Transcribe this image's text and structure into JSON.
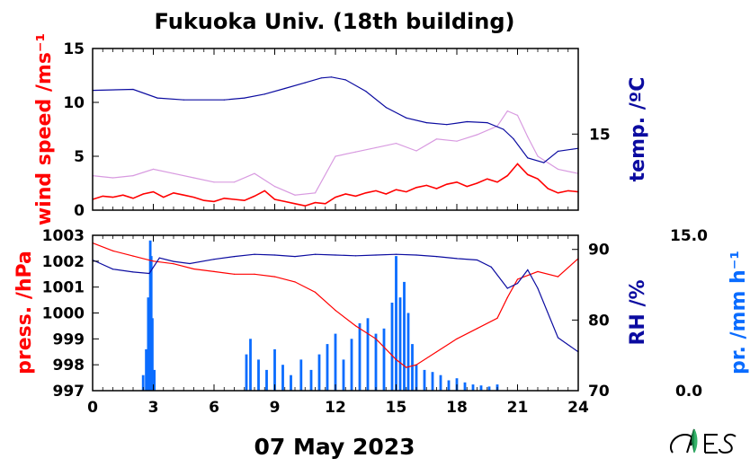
{
  "title": "Fukuoka Univ. (18th building)",
  "date_label": "07 May 2023",
  "chart_data": [
    {
      "type": "line",
      "panel": "top",
      "x": {
        "range": [
          0,
          24
        ],
        "ticks": [
          0,
          3,
          6,
          9,
          12,
          15,
          18,
          21,
          24
        ]
      },
      "y_left": {
        "label": "wind speed /ms⁻¹",
        "range": [
          0,
          15
        ],
        "ticks": [
          0,
          5,
          10,
          15
        ]
      },
      "y_right": {
        "label": "temp. /ºC",
        "range": [
          7,
          24
        ],
        "ticks": [
          15
        ]
      },
      "colors": {
        "wind_mean": "#ff0000",
        "wind_gust": "#d89ae0",
        "temperature": "#0b0ba0"
      },
      "series": [
        {
          "axis": "right",
          "color_key": "temperature",
          "x": [
            0,
            2,
            3.2,
            4.5,
            6.5,
            7.5,
            8.5,
            9.5,
            10.5,
            11.3,
            11.8,
            12.5,
            13.5,
            14.5,
            15.5,
            16.5,
            17.5,
            18.5,
            19.5,
            20.3,
            20.8,
            21.5,
            22.3,
            23,
            24
          ],
          "y": [
            19.6,
            19.7,
            18.8,
            18.6,
            18.6,
            18.8,
            19.2,
            19.8,
            20.4,
            20.9,
            21.0,
            20.7,
            19.5,
            17.8,
            16.7,
            16.2,
            16.0,
            16.3,
            16.2,
            15.5,
            14.5,
            12.5,
            12.0,
            13.2,
            13.5
          ]
        },
        {
          "axis": "left",
          "color_key": "wind_gust",
          "x": [
            0,
            1,
            2,
            3,
            4,
            5,
            6,
            7,
            8,
            9,
            10,
            11,
            12,
            13,
            14,
            15,
            16,
            17,
            18,
            19,
            20,
            20.5,
            21,
            21.5,
            22,
            23,
            24
          ],
          "y": [
            3.2,
            3.0,
            3.2,
            3.8,
            3.4,
            3.0,
            2.6,
            2.6,
            3.4,
            2.2,
            1.4,
            1.6,
            5.0,
            5.4,
            5.8,
            6.2,
            5.5,
            6.6,
            6.4,
            7.0,
            7.8,
            9.2,
            8.8,
            6.8,
            5.0,
            3.8,
            3.4
          ]
        },
        {
          "axis": "left",
          "color_key": "wind_mean",
          "x": [
            0,
            0.5,
            1,
            1.5,
            2,
            2.5,
            3,
            3.5,
            4,
            4.5,
            5,
            5.5,
            6,
            6.5,
            7,
            7.5,
            8,
            8.5,
            9,
            9.5,
            10,
            10.5,
            11,
            11.5,
            12,
            12.5,
            13,
            13.5,
            14,
            14.5,
            15,
            15.5,
            16,
            16.5,
            17,
            17.5,
            18,
            18.5,
            19,
            19.5,
            20,
            20.5,
            21,
            21.5,
            22,
            22.5,
            23,
            23.5,
            24
          ],
          "y": [
            1.0,
            1.3,
            1.2,
            1.4,
            1.1,
            1.5,
            1.7,
            1.2,
            1.6,
            1.4,
            1.2,
            0.9,
            0.8,
            1.1,
            1.0,
            0.9,
            1.3,
            1.8,
            1.0,
            0.8,
            0.6,
            0.4,
            0.7,
            0.6,
            1.2,
            1.5,
            1.3,
            1.6,
            1.8,
            1.5,
            1.9,
            1.7,
            2.1,
            2.3,
            2.0,
            2.4,
            2.6,
            2.2,
            2.5,
            2.9,
            2.6,
            3.2,
            4.3,
            3.3,
            2.9,
            2.0,
            1.6,
            1.8,
            1.7
          ]
        }
      ]
    },
    {
      "type": "line",
      "panel": "bottom",
      "x": {
        "range": [
          0,
          24
        ],
        "ticks": [
          0,
          3,
          6,
          9,
          12,
          15,
          18,
          21,
          24
        ],
        "tick_labels": [
          "0",
          "3",
          "6",
          "9",
          "12",
          "15",
          "18",
          "21",
          "24"
        ]
      },
      "y_left": {
        "label": "press. /hPa",
        "range": [
          997,
          1003
        ],
        "ticks": [
          997,
          998,
          999,
          1000,
          1001,
          1002,
          1003
        ]
      },
      "y_right": {
        "label": "RH /%",
        "range": [
          70,
          92
        ],
        "ticks": [
          70,
          80,
          90
        ]
      },
      "y_right2": {
        "label": "pr. /mm h⁻¹",
        "range": [
          0,
          15
        ],
        "ticks": [
          0,
          15
        ],
        "tick_labels": [
          "0.0",
          "15.0"
        ]
      },
      "colors": {
        "pressure": "#ff0000",
        "humidity": "#0b0ba0",
        "precipitation": "#0a6cff"
      },
      "series": [
        {
          "axis": "left",
          "color_key": "pressure",
          "x": [
            0,
            1,
            2,
            3,
            4,
            5,
            6,
            7,
            8,
            9,
            10,
            11,
            12,
            13,
            14,
            15,
            15.5,
            16,
            17,
            18,
            19,
            20,
            20.5,
            21,
            22,
            23,
            24
          ],
          "y": [
            1002.7,
            1002.4,
            1002.2,
            1002.0,
            1001.9,
            1001.7,
            1001.6,
            1001.5,
            1001.5,
            1001.4,
            1001.2,
            1000.8,
            1000.1,
            999.5,
            999.0,
            998.2,
            997.9,
            998.0,
            998.5,
            999.0,
            999.4,
            999.8,
            1000.6,
            1001.3,
            1001.6,
            1001.4,
            1002.1
          ]
        },
        {
          "axis": "right",
          "color_key": "humidity",
          "x": [
            0,
            1,
            2,
            2.8,
            3.3,
            4,
            4.8,
            6,
            7,
            8,
            9,
            10,
            11,
            12,
            13,
            14,
            15,
            16,
            17,
            18,
            19,
            19.7,
            20.5,
            21,
            21.5,
            22,
            23,
            24
          ],
          "y": [
            88.5,
            87.2,
            86.8,
            86.6,
            88.8,
            88.3,
            88.0,
            88.6,
            89.0,
            89.3,
            89.2,
            89.0,
            89.3,
            89.2,
            89.1,
            89.2,
            89.3,
            89.2,
            89.0,
            88.7,
            88.5,
            87.5,
            84.5,
            85.2,
            87.1,
            84.5,
            77.5,
            75.5
          ]
        },
        {
          "type": "bar",
          "axis": "right2",
          "color_key": "precipitation",
          "x": [
            2.5,
            2.65,
            2.75,
            2.85,
            2.9,
            2.95,
            3.05,
            7.6,
            7.8,
            8.2,
            8.6,
            9.0,
            9.4,
            9.8,
            10.3,
            10.8,
            11.2,
            11.6,
            12.0,
            12.4,
            12.8,
            13.2,
            13.6,
            14.0,
            14.4,
            14.8,
            15.0,
            15.2,
            15.4,
            15.6,
            15.8,
            16.0,
            16.4,
            16.8,
            17.2,
            17.6,
            18.0,
            18.4,
            18.8,
            19.2,
            19.6,
            20.0
          ],
          "y": [
            1.5,
            4.0,
            9.0,
            14.5,
            13.0,
            7.0,
            2.0,
            3.5,
            5.0,
            3.0,
            2.0,
            4.0,
            2.5,
            1.5,
            3.0,
            2.0,
            3.5,
            4.5,
            5.5,
            3.0,
            5.0,
            6.5,
            7.0,
            5.5,
            6.0,
            8.5,
            13.0,
            9.0,
            10.5,
            7.5,
            4.5,
            2.5,
            2.0,
            1.8,
            1.5,
            1.0,
            1.2,
            0.8,
            0.6,
            0.5,
            0.4,
            0.6
          ]
        }
      ]
    }
  ]
}
